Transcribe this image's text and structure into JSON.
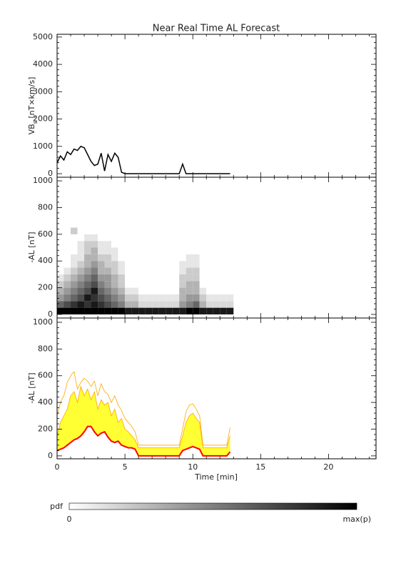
{
  "chart_data": [
    {
      "type": "line",
      "title": "Near Real Time AL Forecast",
      "ylabel": {
        "main": "VB",
        "sub": "s",
        "unit": " [nT×km/s]"
      },
      "x": [
        0,
        0.25,
        0.5,
        0.75,
        1,
        1.25,
        1.5,
        1.75,
        2,
        2.25,
        2.5,
        2.75,
        3,
        3.25,
        3.5,
        3.75,
        4,
        4.25,
        4.5,
        4.75,
        5,
        5.25,
        5.5,
        5.75,
        6,
        6.25,
        6.5,
        6.75,
        7,
        7.25,
        7.5,
        7.75,
        8,
        8.25,
        8.5,
        8.75,
        9,
        9.25,
        9.5,
        9.75,
        10,
        10.25,
        10.5,
        10.75,
        11,
        11.25,
        11.5,
        11.75,
        12,
        12.25,
        12.5,
        12.75
      ],
      "values": [
        400,
        650,
        500,
        800,
        700,
        900,
        850,
        1000,
        950,
        700,
        450,
        300,
        350,
        750,
        100,
        700,
        450,
        750,
        600,
        50,
        0,
        0,
        0,
        0,
        0,
        0,
        0,
        0,
        0,
        0,
        0,
        0,
        0,
        0,
        0,
        0,
        0,
        350,
        0,
        0,
        0,
        0,
        0,
        0,
        0,
        0,
        0,
        0,
        0,
        0,
        0,
        0
      ],
      "color": "#000000",
      "xlim": [
        0,
        23.5
      ],
      "xticks": [
        0,
        5,
        10,
        15,
        20
      ],
      "show_xtick_labels": false,
      "ylim": [
        -130,
        5100
      ],
      "yticks": [
        0,
        1000,
        2000,
        3000,
        4000,
        5000
      ]
    },
    {
      "type": "heatmap",
      "ylabel": "-AL [nT]",
      "x": [
        0,
        0.5,
        1,
        1.5,
        2,
        2.5,
        3,
        3.5,
        4,
        4.5,
        5,
        5.5,
        6,
        6.5,
        7,
        7.5,
        8,
        8.5,
        9,
        9.5,
        10,
        10.5,
        11,
        11.5,
        12,
        12.5
      ],
      "bins": [
        0,
        50,
        100,
        150,
        200,
        250,
        300,
        350,
        400,
        450,
        500,
        550,
        600,
        650
      ],
      "z": [
        [
          1,
          0.6,
          0.4,
          0.3,
          0.2,
          0.1,
          0,
          0,
          0,
          0,
          0,
          0,
          0
        ],
        [
          1,
          0.7,
          0.5,
          0.4,
          0.3,
          0.2,
          0.1,
          0,
          0,
          0,
          0,
          0,
          0
        ],
        [
          1,
          0.8,
          0.6,
          0.5,
          0.4,
          0.3,
          0.2,
          0.1,
          0.1,
          0,
          0,
          0,
          0.2
        ],
        [
          1,
          0.9,
          0.7,
          0.6,
          0.5,
          0.4,
          0.3,
          0.2,
          0.1,
          0.1,
          0.1,
          0,
          0
        ],
        [
          1,
          0.8,
          0.9,
          0.7,
          0.6,
          0.5,
          0.4,
          0.3,
          0.3,
          0.2,
          0.2,
          0.1,
          0
        ],
        [
          1,
          0.9,
          0.8,
          0.9,
          0.7,
          0.6,
          0.5,
          0.4,
          0.3,
          0.3,
          0.2,
          0.1,
          0
        ],
        [
          1,
          0.8,
          0.7,
          0.6,
          0.5,
          0.4,
          0.3,
          0.3,
          0.2,
          0.1,
          0.1,
          0,
          0
        ],
        [
          1,
          0.7,
          0.6,
          0.5,
          0.4,
          0.4,
          0.3,
          0.2,
          0.2,
          0.1,
          0.1,
          0,
          0
        ],
        [
          1,
          0.6,
          0.5,
          0.4,
          0.3,
          0.3,
          0.2,
          0.2,
          0.1,
          0.1,
          0,
          0,
          0
        ],
        [
          1,
          0.5,
          0.4,
          0.3,
          0.2,
          0.2,
          0.1,
          0.1,
          0,
          0,
          0,
          0,
          0
        ],
        [
          0.9,
          0.3,
          0.2,
          0.1,
          0,
          0,
          0,
          0,
          0,
          0,
          0,
          0,
          0
        ],
        [
          0.9,
          0.3,
          0.2,
          0.1,
          0,
          0,
          0,
          0,
          0,
          0,
          0,
          0,
          0
        ],
        [
          0.9,
          0.15,
          0.1,
          0,
          0,
          0,
          0,
          0,
          0,
          0,
          0,
          0,
          0
        ],
        [
          0.9,
          0.15,
          0.1,
          0,
          0,
          0,
          0,
          0,
          0,
          0,
          0,
          0,
          0
        ],
        [
          0.9,
          0.15,
          0.1,
          0,
          0,
          0,
          0,
          0,
          0,
          0,
          0,
          0,
          0
        ],
        [
          0.9,
          0.15,
          0.1,
          0,
          0,
          0,
          0,
          0,
          0,
          0,
          0,
          0,
          0
        ],
        [
          0.9,
          0.15,
          0.1,
          0,
          0,
          0,
          0,
          0,
          0,
          0,
          0,
          0,
          0
        ],
        [
          0.9,
          0.15,
          0.1,
          0,
          0,
          0,
          0,
          0,
          0,
          0,
          0,
          0,
          0
        ],
        [
          0.9,
          0.4,
          0.3,
          0.3,
          0.2,
          0.2,
          0.1,
          0.1,
          0,
          0,
          0,
          0,
          0
        ],
        [
          1,
          0.5,
          0.4,
          0.3,
          0.3,
          0.2,
          0.2,
          0.1,
          0.1,
          0,
          0,
          0,
          0
        ],
        [
          1,
          0.6,
          0.4,
          0.3,
          0.3,
          0.2,
          0.2,
          0.1,
          0.1,
          0,
          0,
          0,
          0
        ],
        [
          0.9,
          0.3,
          0.2,
          0.1,
          0,
          0,
          0,
          0,
          0,
          0,
          0,
          0,
          0
        ],
        [
          0.9,
          0.15,
          0.1,
          0,
          0,
          0,
          0,
          0,
          0,
          0,
          0,
          0,
          0
        ],
        [
          0.9,
          0.15,
          0.1,
          0,
          0,
          0,
          0,
          0,
          0,
          0,
          0,
          0,
          0
        ],
        [
          0.9,
          0.15,
          0.1,
          0,
          0,
          0,
          0,
          0,
          0,
          0,
          0,
          0,
          0
        ],
        [
          0.9,
          0.15,
          0.1,
          0,
          0,
          0,
          0,
          0,
          0,
          0,
          0,
          0,
          0
        ]
      ],
      "xlim": [
        0,
        23.5
      ],
      "xticks": [
        0,
        5,
        10,
        15,
        20
      ],
      "show_xtick_labels": false,
      "ylim": [
        -27,
        1027
      ],
      "yticks": [
        0,
        200,
        400,
        600,
        800,
        1000
      ]
    },
    {
      "type": "area",
      "ylabel": "-AL [nT]",
      "xlabel": "Time [min]",
      "x": [
        0,
        0.25,
        0.5,
        0.75,
        1,
        1.25,
        1.5,
        1.75,
        2,
        2.25,
        2.5,
        2.75,
        3,
        3.25,
        3.5,
        3.75,
        4,
        4.25,
        4.5,
        4.75,
        5,
        5.25,
        5.5,
        5.75,
        6,
        6.25,
        6.5,
        6.75,
        7,
        7.25,
        7.5,
        7.75,
        8,
        8.25,
        8.5,
        8.75,
        9,
        9.25,
        9.5,
        9.75,
        10,
        10.25,
        10.5,
        10.75,
        11,
        11.25,
        11.5,
        11.75,
        12,
        12.25,
        12.5,
        12.75
      ],
      "series": [
        {
          "color": "#ff0000",
          "values": [
            40,
            50,
            60,
            80,
            100,
            120,
            130,
            150,
            180,
            220,
            220,
            180,
            150,
            170,
            180,
            140,
            110,
            100,
            110,
            80,
            70,
            60,
            60,
            50,
            0,
            0,
            0,
            0,
            0,
            0,
            0,
            0,
            0,
            0,
            0,
            0,
            0,
            40,
            50,
            60,
            70,
            60,
            50,
            0,
            0,
            0,
            0,
            0,
            0,
            0,
            0,
            30
          ]
        },
        {
          "color": "#ffff33",
          "values": [
            150,
            250,
            300,
            350,
            450,
            480,
            400,
            520,
            450,
            500,
            420,
            480,
            350,
            420,
            380,
            400,
            300,
            350,
            250,
            280,
            200,
            180,
            150,
            120,
            60,
            60,
            60,
            60,
            60,
            60,
            60,
            60,
            60,
            60,
            60,
            60,
            60,
            150,
            250,
            300,
            320,
            280,
            250,
            60,
            60,
            60,
            60,
            60,
            60,
            60,
            60,
            150
          ]
        },
        {
          "color": "#ffa500",
          "values": [
            300,
            400,
            450,
            550,
            600,
            630,
            500,
            550,
            580,
            560,
            520,
            560,
            450,
            540,
            480,
            460,
            400,
            450,
            380,
            340,
            280,
            250,
            220,
            180,
            80,
            80,
            80,
            80,
            80,
            80,
            80,
            80,
            80,
            80,
            80,
            80,
            80,
            200,
            330,
            380,
            390,
            350,
            300,
            80,
            80,
            80,
            80,
            80,
            80,
            80,
            80,
            210
          ]
        }
      ],
      "xlim": [
        0,
        23.5
      ],
      "xticks": [
        0,
        5,
        10,
        15,
        20
      ],
      "show_xtick_labels": true,
      "ylim": [
        -22,
        1032
      ],
      "yticks": [
        0,
        200,
        400,
        600,
        800,
        1000
      ]
    }
  ],
  "colorbar": {
    "title": "pdf",
    "low": 0,
    "high_label": "max(p)",
    "colors": [
      "#ffffff",
      "#000000"
    ]
  }
}
